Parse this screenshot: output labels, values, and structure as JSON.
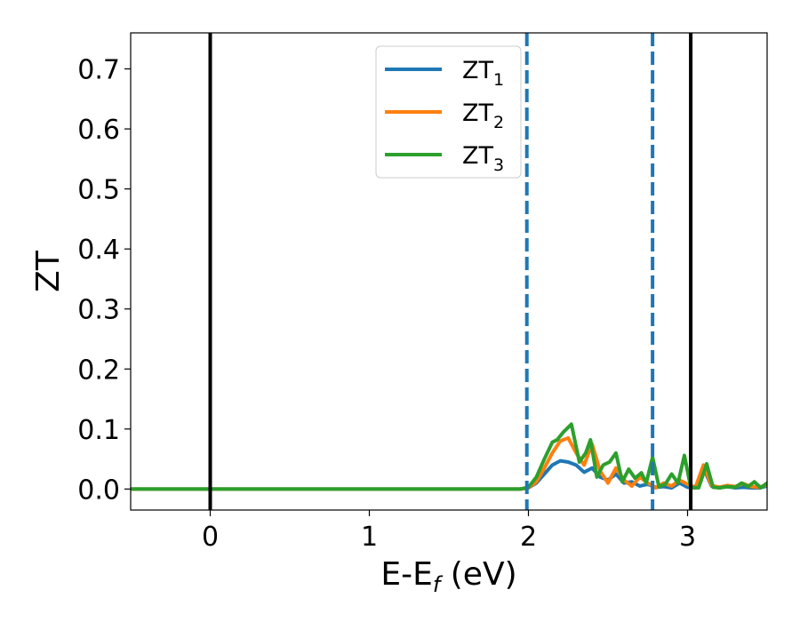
{
  "chart_data": {
    "type": "line",
    "title": "",
    "xlabel_parts": {
      "base": "E-E",
      "subscript": "f",
      "suffix": " (eV)"
    },
    "ylabel": "ZT",
    "xlim": [
      -0.5,
      3.5
    ],
    "ylim": [
      -0.035,
      0.76
    ],
    "xticks": [
      0,
      1,
      2,
      3
    ],
    "yticks": [
      0.0,
      0.1,
      0.2,
      0.3,
      0.4,
      0.5,
      0.6,
      0.7
    ],
    "xtick_labels": [
      "0",
      "1",
      "2",
      "3"
    ],
    "ytick_labels": [
      "0.0",
      "0.1",
      "0.2",
      "0.3",
      "0.4",
      "0.5",
      "0.6",
      "0.7"
    ],
    "grid": false,
    "legend": {
      "placement": "top-center"
    },
    "vlines": [
      {
        "x": 0.0,
        "style": "solid",
        "color": "#000000"
      },
      {
        "x": 3.02,
        "style": "solid",
        "color": "#000000"
      },
      {
        "x": 1.99,
        "style": "dashed",
        "color": "#1f77b4"
      },
      {
        "x": 2.78,
        "style": "dashed",
        "color": "#1f77b4"
      }
    ],
    "series": [
      {
        "legend_base": "ZT",
        "legend_sub": "1",
        "color": "#1f77b4",
        "x": [
          -0.5,
          1.95,
          2.0,
          2.05,
          2.1,
          2.15,
          2.2,
          2.25,
          2.3,
          2.35,
          2.4,
          2.45,
          2.5,
          2.55,
          2.6,
          2.65,
          2.7,
          2.75,
          2.8,
          2.85,
          2.9,
          2.95,
          3.0,
          3.05,
          3.1,
          3.15,
          3.2,
          3.25,
          3.3,
          3.35,
          3.4,
          3.45,
          3.5
        ],
        "y": [
          0.0,
          0.0,
          0.002,
          0.01,
          0.025,
          0.04,
          0.047,
          0.045,
          0.04,
          0.028,
          0.035,
          0.02,
          0.015,
          0.025,
          0.01,
          0.012,
          0.005,
          0.008,
          0.003,
          0.004,
          0.002,
          0.01,
          0.003,
          0.002,
          0.035,
          0.005,
          0.002,
          0.004,
          0.002,
          0.003,
          0.002,
          0.002,
          0.005
        ]
      },
      {
        "legend_base": "ZT",
        "legend_sub": "2",
        "color": "#ff7f0e",
        "x": [
          -0.5,
          1.95,
          2.0,
          2.05,
          2.1,
          2.15,
          2.2,
          2.25,
          2.3,
          2.35,
          2.4,
          2.45,
          2.5,
          2.55,
          2.6,
          2.65,
          2.7,
          2.75,
          2.8,
          2.85,
          2.9,
          2.95,
          3.0,
          3.05,
          3.1,
          3.15,
          3.2,
          3.25,
          3.3,
          3.35,
          3.4,
          3.45,
          3.5
        ],
        "y": [
          0.0,
          0.0,
          0.002,
          0.012,
          0.035,
          0.06,
          0.08,
          0.085,
          0.06,
          0.04,
          0.075,
          0.03,
          0.01,
          0.035,
          0.015,
          0.005,
          0.02,
          0.01,
          0.002,
          0.01,
          0.005,
          0.015,
          0.008,
          0.003,
          0.04,
          0.006,
          0.003,
          0.006,
          0.004,
          0.009,
          0.004,
          0.003,
          0.007
        ]
      },
      {
        "legend_base": "ZT",
        "legend_sub": "3",
        "color": "#2ca02c",
        "x": [
          -0.5,
          1.95,
          2.0,
          2.05,
          2.1,
          2.15,
          2.18,
          2.22,
          2.27,
          2.32,
          2.36,
          2.39,
          2.43,
          2.47,
          2.51,
          2.55,
          2.59,
          2.63,
          2.67,
          2.71,
          2.74,
          2.78,
          2.82,
          2.86,
          2.9,
          2.94,
          2.98,
          3.02,
          3.07,
          3.12,
          3.16,
          3.2,
          3.25,
          3.3,
          3.34,
          3.38,
          3.42,
          3.46,
          3.5
        ],
        "y": [
          0.0,
          0.0,
          0.003,
          0.02,
          0.05,
          0.078,
          0.082,
          0.095,
          0.108,
          0.045,
          0.06,
          0.082,
          0.02,
          0.04,
          0.045,
          0.06,
          0.012,
          0.033,
          0.018,
          0.027,
          0.01,
          0.053,
          0.004,
          0.008,
          0.025,
          0.01,
          0.056,
          0.003,
          0.002,
          0.042,
          0.003,
          0.002,
          0.004,
          0.003,
          0.01,
          0.004,
          0.012,
          0.002,
          0.01
        ]
      }
    ]
  }
}
